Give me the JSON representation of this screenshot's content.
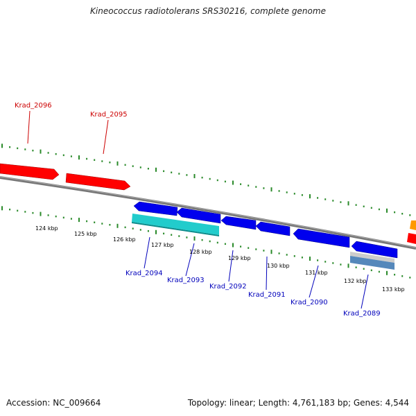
{
  "title": "Kineococcus radiotolerans SRS30216, complete genome",
  "accession": "Accession: NC_009664",
  "stats": "Topology: linear; Length: 4,761,183 bp; Genes: 4,544",
  "kbp_labels": [
    "124 kbp",
    "125 kbp",
    "126 kbp",
    "127 kbp",
    "128 kbp",
    "129 kbp",
    "130 kbp",
    "131 kbp",
    "132 kbp",
    "133 kbp"
  ],
  "genes_top": [
    {
      "label": "Krad_2096",
      "color": "#cc0000"
    },
    {
      "label": "Krad_2095",
      "color": "#cc0000"
    }
  ],
  "genes_bottom": [
    {
      "label": "Krad_2094",
      "color": "#0000bb"
    },
    {
      "label": "Krad_2093",
      "color": "#0000bb"
    },
    {
      "label": "Krad_2092",
      "color": "#0000bb"
    },
    {
      "label": "Krad_2091",
      "color": "#0000bb"
    },
    {
      "label": "Krad_2090",
      "color": "#0000bb"
    },
    {
      "label": "Krad_2089",
      "color": "#0000bb"
    }
  ],
  "colors": {
    "forward_gene": "#ff0000",
    "reverse_gene": "#0000ee",
    "rna_feature": "#22cccc",
    "backbone": "#777777",
    "ticks": "#2a8a2a"
  }
}
